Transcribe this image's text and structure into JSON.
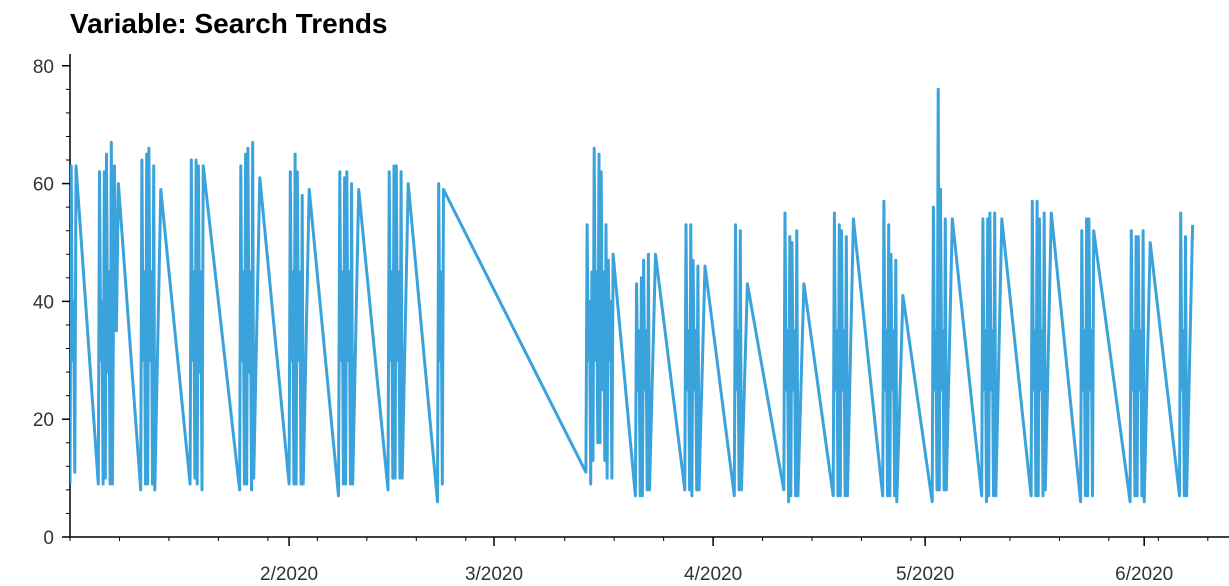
{
  "title": "Variable: Search Trends",
  "chart_data": {
    "type": "line",
    "title": "Variable: Search Trends",
    "xlabel": "",
    "ylabel": "",
    "ylim": [
      0,
      82
    ],
    "xlim": [
      "2020-01-01",
      "2020-06-13"
    ],
    "y_ticks": [
      0,
      20,
      40,
      60,
      80
    ],
    "y_minor_step": 4,
    "x_ticks": [
      {
        "date": "2020-02-01",
        "label": "2/2020"
      },
      {
        "date": "2020-03-01",
        "label": "3/2020"
      },
      {
        "date": "2020-04-01",
        "label": "4/2020"
      },
      {
        "date": "2020-05-01",
        "label": "5/2020"
      },
      {
        "date": "2020-06-01",
        "label": "6/2020"
      }
    ],
    "grid": false,
    "line_color": "#3ba3db",
    "axis_color": "#000000",
    "gap": {
      "start": "2020-02-25",
      "end": "2020-03-14"
    },
    "series": [
      {
        "name": "",
        "days": [
          {
            "date": "2020-01-01",
            "values": [
              9,
              63,
              30,
              40,
              11,
              63
            ]
          },
          {
            "date": "2020-01-05",
            "values": [
              9,
              62,
              30,
              40,
              9,
              62
            ]
          },
          {
            "date": "2020-01-06",
            "values": [
              10,
              65,
              28,
              45,
              9,
              67
            ]
          },
          {
            "date": "2020-01-07",
            "values": [
              9,
              63,
              35,
              60
            ]
          },
          {
            "date": "2020-01-11",
            "values": [
              8,
              64,
              30,
              45,
              9,
              65
            ]
          },
          {
            "date": "2020-01-12",
            "values": [
              9,
              66,
              30,
              45,
              9,
              63
            ]
          },
          {
            "date": "2020-01-13",
            "values": [
              8,
              59
            ]
          },
          {
            "date": "2020-01-18",
            "values": [
              9,
              64,
              30,
              45,
              10,
              64
            ]
          },
          {
            "date": "2020-01-19",
            "values": [
              9,
              63,
              28,
              45,
              8,
              63
            ]
          },
          {
            "date": "2020-01-25",
            "values": [
              8,
              63,
              30,
              45,
              9,
              65
            ]
          },
          {
            "date": "2020-01-26",
            "values": [
              9,
              66,
              28,
              45,
              8,
              67
            ]
          },
          {
            "date": "2020-01-27",
            "values": [
              10,
              61
            ]
          },
          {
            "date": "2020-02-01",
            "values": [
              9,
              62,
              30,
              45,
              9,
              65
            ]
          },
          {
            "date": "2020-02-02",
            "values": [
              9,
              62,
              30,
              45,
              9,
              58
            ]
          },
          {
            "date": "2020-02-03",
            "values": [
              9,
              59
            ]
          },
          {
            "date": "2020-02-08",
            "values": [
              7,
              62,
              30,
              45,
              9,
              61
            ]
          },
          {
            "date": "2020-02-09",
            "values": [
              9,
              62,
              30,
              45,
              9,
              60
            ]
          },
          {
            "date": "2020-02-10",
            "values": [
              9,
              59
            ]
          },
          {
            "date": "2020-02-15",
            "values": [
              8,
              62,
              30,
              45,
              10,
              63
            ]
          },
          {
            "date": "2020-02-16",
            "values": [
              10,
              63,
              30,
              45,
              10,
              62
            ]
          },
          {
            "date": "2020-02-17",
            "values": [
              10,
              60
            ]
          },
          {
            "date": "2020-02-22",
            "values": [
              6,
              60,
              30,
              45,
              9,
              59
            ]
          },
          {
            "date": "2020-03-14",
            "values": [
              11,
              53,
              30,
              40,
              9,
              45
            ]
          },
          {
            "date": "2020-03-15",
            "values": [
              13,
              66,
              30,
              45,
              16,
              65
            ]
          },
          {
            "date": "2020-03-16",
            "values": [
              16,
              62,
              25,
              45,
              13,
              53
            ]
          },
          {
            "date": "2020-03-17",
            "values": [
              10,
              47,
              30,
              40,
              10,
              48
            ]
          },
          {
            "date": "2020-03-21",
            "values": [
              7,
              43,
              25,
              35,
              7,
              44
            ]
          },
          {
            "date": "2020-03-22",
            "values": [
              7,
              47,
              25,
              35,
              8,
              48
            ]
          },
          {
            "date": "2020-03-23",
            "values": [
              8,
              48
            ]
          },
          {
            "date": "2020-03-28",
            "values": [
              8,
              53,
              25,
              35,
              8,
              53
            ]
          },
          {
            "date": "2020-03-29",
            "values": [
              7,
              47,
              25,
              35,
              8,
              46
            ]
          },
          {
            "date": "2020-03-30",
            "values": [
              8,
              46
            ]
          },
          {
            "date": "2020-04-04",
            "values": [
              7,
              53,
              25,
              35,
              8,
              52
            ]
          },
          {
            "date": "2020-04-05",
            "values": [
              8,
              43
            ]
          },
          {
            "date": "2020-04-11",
            "values": [
              8,
              55,
              25,
              35,
              6,
              51
            ]
          },
          {
            "date": "2020-04-12",
            "values": [
              7,
              50,
              25,
              35,
              7,
              52
            ]
          },
          {
            "date": "2020-04-13",
            "values": [
              7,
              43
            ]
          },
          {
            "date": "2020-04-18",
            "values": [
              7,
              55,
              25,
              35,
              7,
              53
            ]
          },
          {
            "date": "2020-04-19",
            "values": [
              7,
              52,
              25,
              35,
              7,
              51
            ]
          },
          {
            "date": "2020-04-20",
            "values": [
              7,
              54
            ]
          },
          {
            "date": "2020-04-25",
            "values": [
              7,
              57,
              25,
              35,
              7,
              53
            ]
          },
          {
            "date": "2020-04-26",
            "values": [
              7,
              48,
              25,
              35,
              7,
              47
            ]
          },
          {
            "date": "2020-04-27",
            "values": [
              6,
              41
            ]
          },
          {
            "date": "2020-05-02",
            "values": [
              6,
              56,
              25,
              35,
              8,
              76
            ]
          },
          {
            "date": "2020-05-03",
            "values": [
              8,
              59,
              25,
              35,
              8,
              54
            ]
          },
          {
            "date": "2020-05-04",
            "values": [
              8,
              54
            ]
          },
          {
            "date": "2020-05-09",
            "values": [
              7,
              54,
              25,
              35,
              6,
              54
            ]
          },
          {
            "date": "2020-05-10",
            "values": [
              7,
              55,
              25,
              35,
              7,
              55
            ]
          },
          {
            "date": "2020-05-11",
            "values": [
              7,
              54
            ]
          },
          {
            "date": "2020-05-16",
            "values": [
              7,
              57,
              25,
              35,
              7,
              57
            ]
          },
          {
            "date": "2020-05-17",
            "values": [
              7,
              54,
              25,
              35,
              7,
              55
            ]
          },
          {
            "date": "2020-05-18",
            "values": [
              8,
              55
            ]
          },
          {
            "date": "2020-05-23",
            "values": [
              6,
              52,
              25,
              35,
              7,
              54
            ]
          },
          {
            "date": "2020-05-24",
            "values": [
              7,
              54,
              25,
              35,
              7,
              52
            ]
          },
          {
            "date": "2020-05-30",
            "values": [
              6,
              52,
              25,
              35,
              7,
              51
            ]
          },
          {
            "date": "2020-05-31",
            "values": [
              7,
              51,
              25,
              35,
              7,
              52
            ]
          },
          {
            "date": "2020-06-01",
            "values": [
              6,
              50
            ]
          },
          {
            "date": "2020-06-06",
            "values": [
              7,
              55,
              25,
              35,
              7,
              51
            ]
          },
          {
            "date": "2020-06-07",
            "values": [
              7,
              53
            ]
          }
        ]
      }
    ]
  }
}
